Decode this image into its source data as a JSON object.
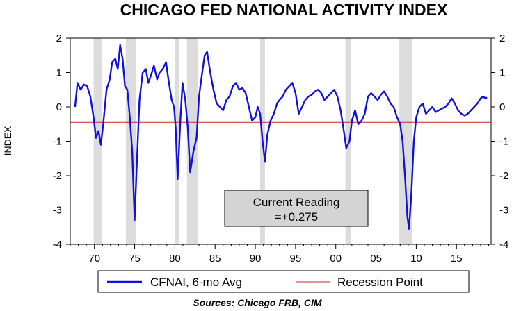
{
  "chart_data": {
    "type": "line",
    "title": "CHICAGO FED NATIONAL ACTIVITY INDEX",
    "ylabel": "INDEX",
    "xlabel": "",
    "x_tick_labels": [
      "70",
      "75",
      "80",
      "85",
      "90",
      "95",
      "00",
      "05",
      "10",
      "15"
    ],
    "x_tick_values": [
      1970,
      1975,
      1980,
      1985,
      1990,
      1995,
      2000,
      2005,
      2010,
      2015
    ],
    "y_ticks": [
      2,
      1,
      0,
      -1,
      -2,
      -3,
      -4
    ],
    "ylim": [
      -4,
      2
    ],
    "xlim": [
      1967,
      2019.3
    ],
    "recession_threshold": -0.45,
    "recessions": [
      [
        1969.9,
        1970.9
      ],
      [
        1973.9,
        1975.2
      ],
      [
        1980.0,
        1980.5
      ],
      [
        1981.5,
        1982.9
      ],
      [
        1990.6,
        1991.2
      ],
      [
        2001.2,
        2001.9
      ],
      [
        2007.9,
        2009.5
      ]
    ],
    "series": [
      {
        "name": "CFNAI, 6-mo Avg",
        "color": "#1010e0",
        "points": [
          [
            1967.6,
            0.0
          ],
          [
            1967.9,
            0.7
          ],
          [
            1968.3,
            0.5
          ],
          [
            1968.7,
            0.65
          ],
          [
            1969.1,
            0.6
          ],
          [
            1969.5,
            0.3
          ],
          [
            1969.9,
            -0.3
          ],
          [
            1970.2,
            -0.9
          ],
          [
            1970.5,
            -0.7
          ],
          [
            1970.8,
            -1.1
          ],
          [
            1971.1,
            -0.5
          ],
          [
            1971.5,
            0.5
          ],
          [
            1971.9,
            0.8
          ],
          [
            1972.2,
            1.3
          ],
          [
            1972.6,
            1.4
          ],
          [
            1972.9,
            1.1
          ],
          [
            1973.2,
            1.8
          ],
          [
            1973.5,
            1.4
          ],
          [
            1973.8,
            0.6
          ],
          [
            1974.1,
            0.5
          ],
          [
            1974.4,
            -0.3
          ],
          [
            1974.7,
            -1.3
          ],
          [
            1975.0,
            -3.3
          ],
          [
            1975.3,
            -1.5
          ],
          [
            1975.6,
            0.2
          ],
          [
            1976.0,
            1.0
          ],
          [
            1976.4,
            1.1
          ],
          [
            1976.7,
            0.7
          ],
          [
            1977.0,
            0.9
          ],
          [
            1977.4,
            1.2
          ],
          [
            1977.8,
            0.8
          ],
          [
            1978.1,
            1.0
          ],
          [
            1978.5,
            1.1
          ],
          [
            1978.9,
            1.3
          ],
          [
            1979.2,
            0.8
          ],
          [
            1979.6,
            0.2
          ],
          [
            1979.9,
            0.0
          ],
          [
            1980.1,
            -0.6
          ],
          [
            1980.35,
            -2.1
          ],
          [
            1980.7,
            -0.3
          ],
          [
            1980.95,
            0.7
          ],
          [
            1981.3,
            0.2
          ],
          [
            1981.6,
            -0.6
          ],
          [
            1981.9,
            -1.9
          ],
          [
            1982.3,
            -1.3
          ],
          [
            1982.7,
            -0.9
          ],
          [
            1983.0,
            0.3
          ],
          [
            1983.4,
            1.0
          ],
          [
            1983.7,
            1.5
          ],
          [
            1984.0,
            1.6
          ],
          [
            1984.4,
            1.0
          ],
          [
            1984.8,
            0.5
          ],
          [
            1985.2,
            0.1
          ],
          [
            1985.6,
            0.0
          ],
          [
            1986.0,
            -0.1
          ],
          [
            1986.4,
            0.2
          ],
          [
            1986.8,
            0.3
          ],
          [
            1987.2,
            0.6
          ],
          [
            1987.6,
            0.7
          ],
          [
            1988.0,
            0.5
          ],
          [
            1988.4,
            0.55
          ],
          [
            1988.8,
            0.4
          ],
          [
            1989.2,
            0.0
          ],
          [
            1989.6,
            -0.4
          ],
          [
            1990.0,
            -0.3
          ],
          [
            1990.3,
            0.0
          ],
          [
            1990.6,
            -0.2
          ],
          [
            1990.9,
            -1.0
          ],
          [
            1991.2,
            -1.6
          ],
          [
            1991.5,
            -0.8
          ],
          [
            1991.9,
            -0.4
          ],
          [
            1992.3,
            -0.2
          ],
          [
            1992.7,
            0.1
          ],
          [
            1993.0,
            0.2
          ],
          [
            1993.4,
            0.3
          ],
          [
            1993.8,
            0.5
          ],
          [
            1994.2,
            0.6
          ],
          [
            1994.6,
            0.7
          ],
          [
            1995.0,
            0.4
          ],
          [
            1995.4,
            -0.2
          ],
          [
            1995.8,
            0.0
          ],
          [
            1996.2,
            0.2
          ],
          [
            1996.6,
            0.3
          ],
          [
            1997.0,
            0.35
          ],
          [
            1997.4,
            0.45
          ],
          [
            1997.8,
            0.5
          ],
          [
            1998.2,
            0.4
          ],
          [
            1998.6,
            0.2
          ],
          [
            1999.0,
            0.3
          ],
          [
            1999.4,
            0.4
          ],
          [
            1999.8,
            0.5
          ],
          [
            2000.2,
            0.3
          ],
          [
            2000.6,
            -0.1
          ],
          [
            2001.0,
            -0.7
          ],
          [
            2001.3,
            -1.2
          ],
          [
            2001.7,
            -1.0
          ],
          [
            2002.0,
            -0.4
          ],
          [
            2002.4,
            -0.1
          ],
          [
            2002.8,
            -0.5
          ],
          [
            2003.2,
            -0.4
          ],
          [
            2003.6,
            -0.2
          ],
          [
            2004.0,
            0.3
          ],
          [
            2004.4,
            0.4
          ],
          [
            2004.8,
            0.3
          ],
          [
            2005.2,
            0.2
          ],
          [
            2005.6,
            0.35
          ],
          [
            2006.0,
            0.45
          ],
          [
            2006.4,
            0.3
          ],
          [
            2006.8,
            0.1
          ],
          [
            2007.2,
            0.0
          ],
          [
            2007.6,
            -0.3
          ],
          [
            2008.0,
            -0.5
          ],
          [
            2008.3,
            -1.0
          ],
          [
            2008.6,
            -2.0
          ],
          [
            2008.9,
            -3.2
          ],
          [
            2009.1,
            -3.55
          ],
          [
            2009.4,
            -2.5
          ],
          [
            2009.7,
            -1.0
          ],
          [
            2010.0,
            -0.3
          ],
          [
            2010.4,
            0.0
          ],
          [
            2010.8,
            0.1
          ],
          [
            2011.2,
            -0.2
          ],
          [
            2011.6,
            -0.1
          ],
          [
            2012.0,
            0.0
          ],
          [
            2012.4,
            -0.15
          ],
          [
            2012.8,
            -0.1
          ],
          [
            2013.2,
            -0.05
          ],
          [
            2013.6,
            0.0
          ],
          [
            2014.0,
            0.1
          ],
          [
            2014.4,
            0.25
          ],
          [
            2014.8,
            0.1
          ],
          [
            2015.2,
            -0.1
          ],
          [
            2015.6,
            -0.2
          ],
          [
            2016.0,
            -0.25
          ],
          [
            2016.4,
            -0.2
          ],
          [
            2016.8,
            -0.1
          ],
          [
            2017.2,
            0.0
          ],
          [
            2017.6,
            0.1
          ],
          [
            2018.0,
            0.25
          ],
          [
            2018.3,
            0.3
          ],
          [
            2018.6,
            0.25
          ],
          [
            2018.8,
            0.275
          ]
        ]
      },
      {
        "name": "Recession Point",
        "color": "#d02020",
        "constant": -0.45
      }
    ],
    "annotation": {
      "line1": "Current Reading",
      "line2": "=+0.275"
    },
    "legend_position": "bottom",
    "grid": false,
    "source": "Sources:  Chicago FRB, CIM"
  }
}
